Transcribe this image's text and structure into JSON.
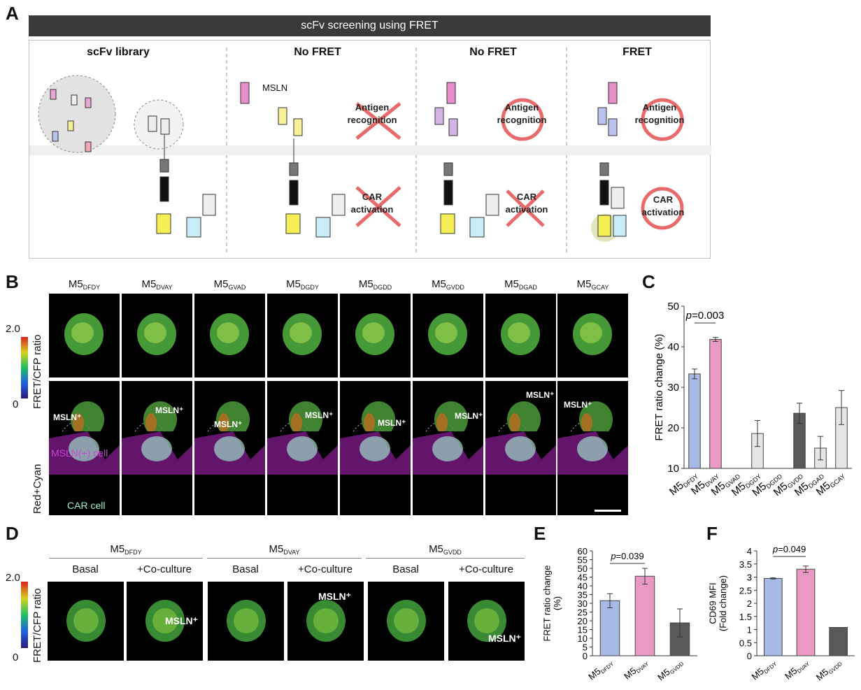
{
  "panel_labels": {
    "a": "A",
    "b": "B",
    "c": "C",
    "d": "D",
    "e": "E",
    "f": "F"
  },
  "panelA": {
    "banner": "scFv screening using FRET",
    "columns": [
      "scFv library",
      "No FRET",
      "No FRET",
      "FRET"
    ],
    "mesln_label": "MSLN",
    "antigen": [
      "Antigen",
      "recognition"
    ],
    "car": [
      "CAR",
      "activation"
    ]
  },
  "panelB": {
    "columns": [
      {
        "main": "M5",
        "sub": "DFDY"
      },
      {
        "main": "M5",
        "sub": "DVAY"
      },
      {
        "main": "M5",
        "sub": "GVAD"
      },
      {
        "main": "M5",
        "sub": "DGDY"
      },
      {
        "main": "M5",
        "sub": "DGDD"
      },
      {
        "main": "M5",
        "sub": "GVDD"
      },
      {
        "main": "M5",
        "sub": "DGAD"
      },
      {
        "main": "M5",
        "sub": "GCAY"
      }
    ],
    "colorbar_max": "2.0",
    "colorbar_min": "0",
    "row_labels": [
      "FRET/CFP ratio",
      "Red+Cyan"
    ],
    "msln_plus": "MSLN⁺",
    "msln_cell": "MSLN(+) cell",
    "car_cell": "CAR cell"
  },
  "panelD": {
    "groups": [
      {
        "main": "M5",
        "sub": "DFDY"
      },
      {
        "main": "M5",
        "sub": "DVAY"
      },
      {
        "main": "M5",
        "sub": "GVDD"
      }
    ],
    "conditions": [
      "Basal",
      "+Co-culture"
    ],
    "colorbar_max": "2.0",
    "colorbar_min": "0",
    "row_label": "FRET/CFP ratio",
    "msln_plus": "MSLN⁺"
  },
  "chart_data": [
    {
      "type": "bar",
      "panel": "C",
      "categories": [
        "M5DFDY",
        "M5DVAY",
        "M5GVAD",
        "M5DGDY",
        "M5DGDD",
        "M5GVDD",
        "M5DGAD",
        "M5GCAY"
      ],
      "category_main": "M5",
      "category_subs": [
        "DFDY",
        "DVAY",
        "GVAD",
        "DGDY",
        "DGDD",
        "GVDD",
        "DGAD",
        "GCAY"
      ],
      "values": [
        33.3,
        41.8,
        null,
        18.6,
        null,
        23.6,
        15.0,
        25.0
      ],
      "errors": [
        1.2,
        0.5,
        null,
        3.2,
        null,
        2.5,
        2.9,
        4.2
      ],
      "colors": [
        "#a8b9e6",
        "#e89ac4",
        "#ffffff",
        "#e6e6e6",
        "#ffffff",
        "#595959",
        "#e6e6e6",
        "#e6e6e6"
      ],
      "ylabel": "FRET ratio change (%)",
      "ylim": [
        10,
        50
      ],
      "yticks": [
        10,
        20,
        30,
        40,
        50
      ],
      "annotation": "p=0.003"
    },
    {
      "type": "bar",
      "panel": "E",
      "categories": [
        "M5DFDY",
        "M5DVAY",
        "M5GVDD"
      ],
      "category_main": "M5",
      "category_subs": [
        "DFDY",
        "DVAY",
        "GVDD"
      ],
      "values": [
        31.5,
        45.5,
        18.8
      ],
      "errors": [
        4,
        4.5,
        8
      ],
      "colors": [
        "#a8b9e6",
        "#e89ac4",
        "#595959"
      ],
      "ylabel": "FRET ratio change (%)",
      "ylim": [
        0,
        60
      ],
      "yticks": [
        0,
        5,
        10,
        15,
        20,
        25,
        30,
        35,
        40,
        45,
        50,
        55,
        60
      ],
      "annotation": "p=0.039"
    },
    {
      "type": "bar",
      "panel": "F",
      "categories": [
        "M5DFDY",
        "M5DVAY",
        "M5GVDD"
      ],
      "category_main": "M5",
      "category_subs": [
        "DFDY",
        "DVAY",
        "GVDD"
      ],
      "values": [
        2.95,
        3.3,
        1.08
      ],
      "errors": [
        0.02,
        0.12,
        0
      ],
      "colors": [
        "#a8b9e6",
        "#e89ac4",
        "#595959"
      ],
      "ylabel": "CD69 MFI (Fold change)",
      "ylim": [
        0,
        4
      ],
      "yticks": [
        0,
        0.5,
        1,
        1.5,
        2,
        2.5,
        3,
        3.5,
        4
      ],
      "annotation": "p=0.049"
    }
  ]
}
